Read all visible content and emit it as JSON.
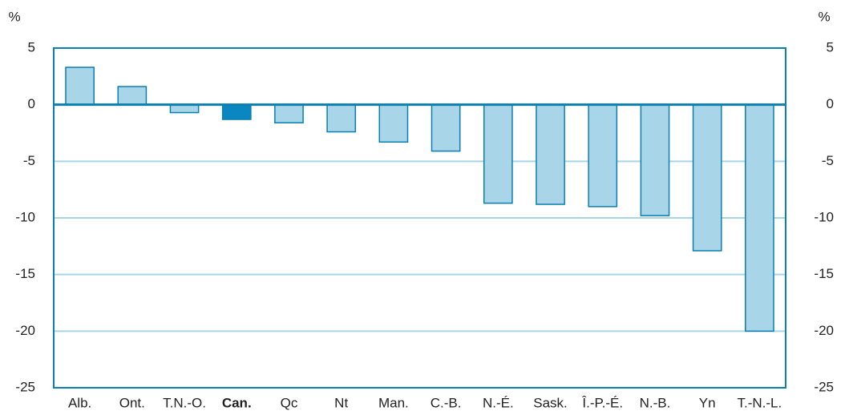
{
  "chart_data": {
    "type": "bar",
    "ylabel": "%",
    "y2label": "%",
    "categories": [
      "Alb.",
      "Ont.",
      "T.N.-O.",
      "Can.",
      "Qc",
      "Nt",
      "Man.",
      "C.-B.",
      "N.-É.",
      "Sask.",
      "Î.-P.-É.",
      "N.-B.",
      "Yn",
      "T.-N.-L."
    ],
    "values": [
      3.3,
      1.6,
      -0.7,
      -1.3,
      -1.6,
      -2.4,
      -3.3,
      -4.1,
      -8.7,
      -8.8,
      -9.0,
      -9.8,
      -12.9,
      -20.0
    ],
    "color": "#a8d5e8",
    "colors": [
      "#a8d5e8",
      "#a8d5e8",
      "#a8d5e8",
      "#0a87c0",
      "#a8d5e8",
      "#a8d5e8",
      "#a8d5e8",
      "#a8d5e8",
      "#a8d5e8",
      "#a8d5e8",
      "#a8d5e8",
      "#a8d5e8",
      "#a8d5e8",
      "#a8d5e8"
    ],
    "edge_color": "#0a7fb0",
    "grid_color": "#a8d5e8",
    "ylim": [
      -25,
      5
    ],
    "yticks": [
      5,
      0,
      -5,
      -10,
      -15,
      -20,
      -25
    ],
    "y2lim": [
      -25,
      5
    ],
    "y2ticks": [
      5,
      0,
      -5,
      -10,
      -15,
      -20,
      -25
    ],
    "grid": true
  }
}
